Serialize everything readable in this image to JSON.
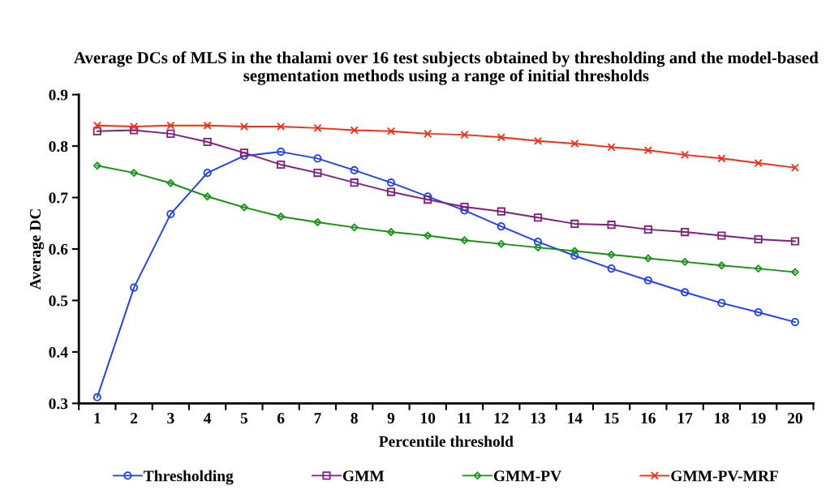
{
  "chart_data": {
    "type": "line",
    "title": "Average DCs of MLS in the thalami over 16 test subjects obtained by thresholding and the model-based segmentation methods using a range of initial thresholds",
    "xlabel": "Percentile threshold",
    "ylabel": "Average DC",
    "categories": [
      "1",
      "2",
      "3",
      "4",
      "5",
      "6",
      "7",
      "8",
      "9",
      "10",
      "11",
      "12",
      "13",
      "14",
      "15",
      "16",
      "17",
      "18",
      "19",
      "20"
    ],
    "ylim": [
      0.3,
      0.9
    ],
    "yticks": [
      0.3,
      0.4,
      0.5,
      0.6,
      0.7,
      0.8,
      0.9
    ],
    "grid": false,
    "legend": "bottom",
    "series": [
      {
        "name": "Thresholding",
        "color": "#1f3fff",
        "marker": "circle",
        "values": [
          0.312,
          0.525,
          0.668,
          0.748,
          0.781,
          0.789,
          0.776,
          0.753,
          0.729,
          0.702,
          0.675,
          0.644,
          0.614,
          0.587,
          0.562,
          0.539,
          0.516,
          0.495,
          0.477,
          0.458
        ]
      },
      {
        "name": "GMM",
        "color": "#7f1f7f",
        "marker": "square",
        "values": [
          0.829,
          0.831,
          0.824,
          0.808,
          0.787,
          0.764,
          0.748,
          0.729,
          0.711,
          0.696,
          0.682,
          0.673,
          0.661,
          0.649,
          0.647,
          0.638,
          0.633,
          0.626,
          0.619,
          0.615
        ]
      },
      {
        "name": "GMM-PV",
        "color": "#129412",
        "marker": "diamond",
        "values": [
          0.762,
          0.748,
          0.728,
          0.702,
          0.681,
          0.663,
          0.652,
          0.642,
          0.633,
          0.626,
          0.617,
          0.61,
          0.603,
          0.596,
          0.589,
          0.582,
          0.575,
          0.568,
          0.562,
          0.555
        ]
      },
      {
        "name": "GMM-PV-MRF",
        "color": "#ff2a10",
        "marker": "cross",
        "values": [
          0.84,
          0.838,
          0.84,
          0.84,
          0.838,
          0.838,
          0.835,
          0.831,
          0.829,
          0.824,
          0.822,
          0.817,
          0.81,
          0.805,
          0.798,
          0.792,
          0.783,
          0.776,
          0.767,
          0.758
        ]
      }
    ]
  }
}
